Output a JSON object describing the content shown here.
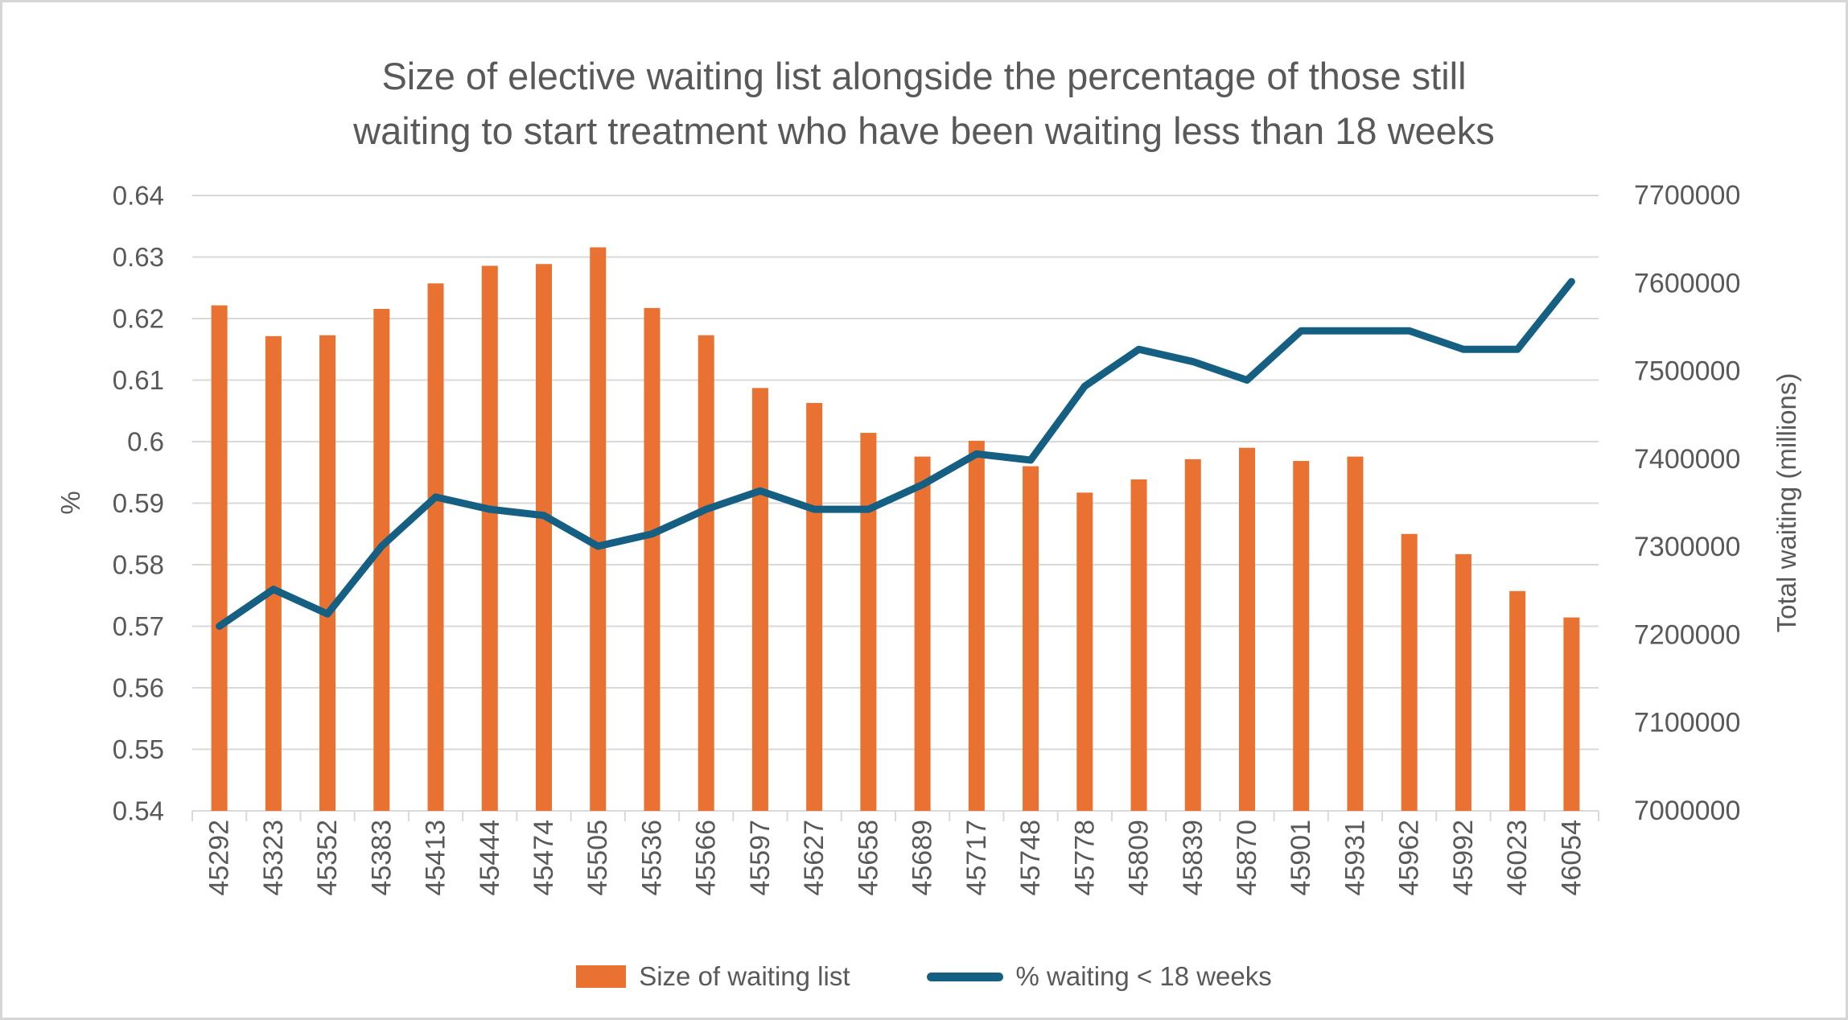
{
  "chart_data": {
    "type": "combo",
    "title_lines": [
      "Size of elective waiting list alongside the percentage of those still",
      "waiting to start treatment who have been waiting less than 18 weeks"
    ],
    "categories": [
      45292,
      45323,
      45352,
      45383,
      45413,
      45444,
      45474,
      45505,
      45536,
      45566,
      45597,
      45627,
      45658,
      45689,
      45717,
      45748,
      45778,
      45809,
      45839,
      45870,
      45901,
      45931,
      45962,
      45992,
      46023,
      46054
    ],
    "series": [
      {
        "name": "Size of waiting list",
        "type": "bar",
        "axis": "right",
        "color": "#E97132",
        "values": [
          7575000,
          7540000,
          7541000,
          7571000,
          7600000,
          7620000,
          7622000,
          7641000,
          7572000,
          7541000,
          7481000,
          7464000,
          7430000,
          7403000,
          7421000,
          7392000,
          7362000,
          7377000,
          7400000,
          7413000,
          7398000,
          7403000,
          7315000,
          7292000,
          7250000,
          7220000
        ]
      },
      {
        "name": "% waiting < 18 weeks",
        "type": "line",
        "axis": "left",
        "color": "#156082",
        "values": [
          0.57,
          0.576,
          0.572,
          0.583,
          0.591,
          0.589,
          0.588,
          0.583,
          0.585,
          0.589,
          0.592,
          0.589,
          0.589,
          0.593,
          0.598,
          0.597,
          0.609,
          0.615,
          0.613,
          0.61,
          0.618,
          0.618,
          0.618,
          0.615,
          0.615,
          0.626
        ]
      }
    ],
    "left_axis": {
      "title": "%",
      "min": 0.54,
      "max": 0.64,
      "step": 0.01,
      "tick_labels": [
        "0.64",
        "0.63",
        "0.62",
        "0.61",
        "0.6",
        "0.59",
        "0.58",
        "0.57",
        "0.56",
        "0.55",
        "0.54"
      ]
    },
    "right_axis": {
      "title": "Total waiting (millions)",
      "min": 7000000,
      "max": 7700000,
      "step": 100000,
      "tick_labels": [
        "7700000",
        "7600000",
        "7500000",
        "7400000",
        "7300000",
        "7200000",
        "7100000",
        "7000000"
      ]
    },
    "grid": true,
    "legend_position": "bottom",
    "colors": {
      "grid": "#D9D9D9",
      "axis_line": "#D9D9D9",
      "axis_text": "#595959",
      "title_text": "#595959",
      "background": "#FFFFFF",
      "frame_border": "#D6D6D6"
    }
  }
}
